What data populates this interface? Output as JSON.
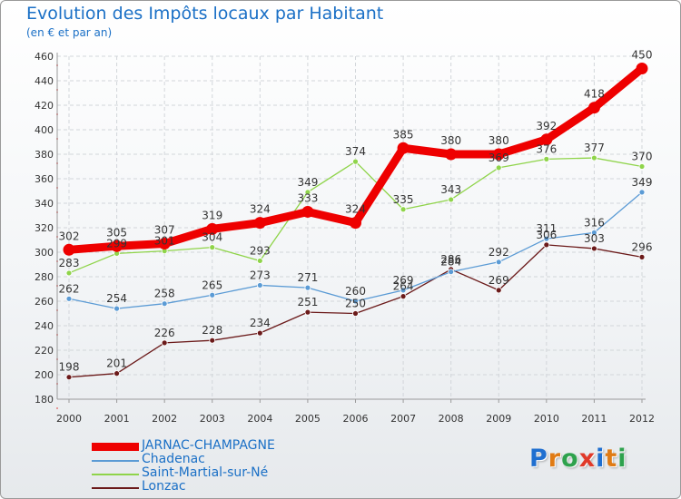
{
  "header": {
    "title": "Evolution des Impôts locaux par Habitant",
    "subtitle": "(en € et par an)"
  },
  "logo": {
    "text": "Proxiti",
    "letter_colors": [
      "#1f6fd0",
      "#e07b14",
      "#2ea24d",
      "#e03a2a",
      "#1f6fd0",
      "#e07b14",
      "#2ea24d"
    ]
  },
  "chart_data": {
    "type": "line",
    "title": "Evolution des Impôts locaux par Habitant",
    "subtitle": "(en € et par an)",
    "xlabel": "",
    "ylabel": "",
    "ylim": [
      180,
      460
    ],
    "ytick_step": 20,
    "grid": true,
    "legend_position": "bottom-left",
    "categories": [
      "2000",
      "2001",
      "2002",
      "2003",
      "2004",
      "2005",
      "2006",
      "2007",
      "2008",
      "2009",
      "2010",
      "2011",
      "2012"
    ],
    "series": [
      {
        "name": "JARNAC-CHAMPAGNE",
        "color": "#ee0000",
        "values": [
          302,
          305,
          307,
          319,
          324,
          333,
          324,
          385,
          380,
          380,
          392,
          418,
          450
        ]
      },
      {
        "name": "Chadenac",
        "color": "#5b9bd5",
        "values": [
          262,
          254,
          258,
          265,
          273,
          271,
          260,
          269,
          284,
          292,
          311,
          316,
          349
        ]
      },
      {
        "name": "Saint-Martial-sur-Né",
        "color": "#8fd44a",
        "values": [
          283,
          299,
          301,
          304,
          293,
          349,
          374,
          335,
          343,
          369,
          376,
          377,
          370
        ]
      },
      {
        "name": "Lonzac",
        "color": "#6b1a1a",
        "values": [
          198,
          201,
          226,
          228,
          234,
          251,
          250,
          264,
          286,
          269,
          306,
          303,
          296
        ]
      }
    ]
  }
}
